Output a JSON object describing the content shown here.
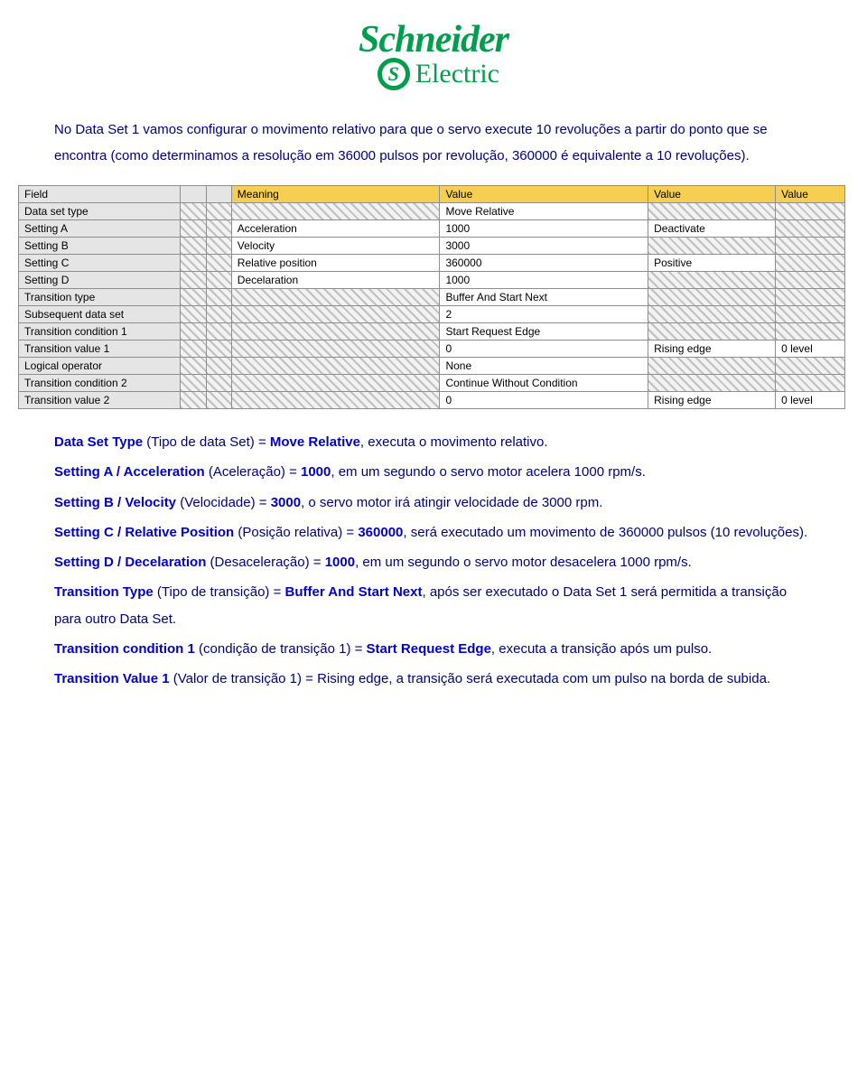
{
  "logo": {
    "main": "Schneider",
    "icon_glyph": "S",
    "sub": "Electric",
    "color": "#009e4d"
  },
  "intro": "No Data Set 1 vamos configurar o movimento relativo para que o servo execute 10 revoluções a partir do ponto que se encontra (como determinamos a resolução em 36000 pulsos por revolução, 360000 é equivalente a 10 revoluções).",
  "table": {
    "headers": [
      "Field",
      "",
      "",
      "Meaning",
      "Value",
      "Value",
      "Value"
    ],
    "rows": [
      {
        "field": "Data set type",
        "meaning": "",
        "v1": "Move Relative",
        "v2": "",
        "v3": "",
        "v1_hatch": false,
        "v2_hatch": true,
        "v3_hatch": true
      },
      {
        "field": "Setting A",
        "meaning": "Acceleration",
        "v1": "1000",
        "v2": "Deactivate",
        "v3": "",
        "v1_hatch": false,
        "v2_hatch": false,
        "v3_hatch": true
      },
      {
        "field": "Setting B",
        "meaning": "Velocity",
        "v1": "3000",
        "v2": "",
        "v3": "",
        "v1_hatch": false,
        "v2_hatch": true,
        "v3_hatch": true
      },
      {
        "field": "Setting C",
        "meaning": "Relative position",
        "v1": "360000",
        "v2": "Positive",
        "v3": "",
        "v1_hatch": false,
        "v2_hatch": false,
        "v3_hatch": true
      },
      {
        "field": "Setting D",
        "meaning": "Decelaration",
        "v1": "1000",
        "v2": "",
        "v3": "",
        "v1_hatch": false,
        "v2_hatch": true,
        "v3_hatch": true
      },
      {
        "field": "Transition type",
        "meaning": "",
        "v1": "Buffer And Start Next",
        "v2": "",
        "v3": "",
        "v1_hatch": false,
        "v2_hatch": true,
        "v3_hatch": true
      },
      {
        "field": "Subsequent data set",
        "meaning": "",
        "v1": "2",
        "v2": "",
        "v3": "",
        "v1_hatch": false,
        "v2_hatch": true,
        "v3_hatch": true
      },
      {
        "field": "Transition condition 1",
        "meaning": "",
        "v1": "Start Request Edge",
        "v2": "",
        "v3": "",
        "v1_hatch": false,
        "v2_hatch": true,
        "v3_hatch": true
      },
      {
        "field": "Transition value 1",
        "meaning": "",
        "v1": "0",
        "v2": "Rising edge",
        "v3": "0 level",
        "v1_hatch": false,
        "v2_hatch": false,
        "v3_hatch": false
      },
      {
        "field": "Logical operator",
        "meaning": "",
        "v1": "None",
        "v2": "",
        "v3": "",
        "v1_hatch": false,
        "v2_hatch": true,
        "v3_hatch": true
      },
      {
        "field": "Transition condition 2",
        "meaning": "",
        "v1": "Continue Without Condition",
        "v2": "",
        "v3": "",
        "v1_hatch": false,
        "v2_hatch": true,
        "v3_hatch": true
      },
      {
        "field": "Transition value 2",
        "meaning": "",
        "v1": "0",
        "v2": "Rising edge",
        "v3": "0 level",
        "v1_hatch": false,
        "v2_hatch": false,
        "v3_hatch": false
      }
    ],
    "header_bg": "#f5ce52",
    "label_bg": "#e5e5e5"
  },
  "explain": {
    "l1a": "Data Set Type",
    "l1b": " (Tipo de data Set) = ",
    "l1c": "Move Relative",
    "l1d": ", executa o movimento relativo.",
    "l2a": "Setting A / Acceleration",
    "l2b": " (Aceleração) = ",
    "l2c": "1000",
    "l2d": ", em um segundo o servo motor acelera 1000 rpm/s.",
    "l3a": "Setting B / Velocity",
    "l3b": " (Velocidade) = ",
    "l3c": "3000",
    "l3d": ", o servo motor irá atingir velocidade de 3000 rpm.",
    "l4a": "Setting C / Relative Position",
    "l4b": " (Posição relativa) = ",
    "l4c": "360000",
    "l4d": ", será executado um movimento de 360000 pulsos (10 revoluções).",
    "l5a": "Setting D / Decelaration",
    "l5b": " (Desaceleração) = ",
    "l5c": "1000",
    "l5d": ", em um segundo o servo motor desacelera 1000 rpm/s.",
    "l6a": "Transition Type",
    "l6b": " (Tipo de transição) = ",
    "l6c": "Buffer And Start Next",
    "l6d": ", após ser executado o Data Set 1 será permitida a transição para outro Data Set.",
    "l7a": "Transition condition 1",
    "l7b": " (condição de transição 1) = ",
    "l7c": "Start Request Edge",
    "l7d": ", executa a transição após um pulso.",
    "l8a": "Transition Value 1",
    "l8b": " (Valor de transição 1) = ",
    "l8c": "Rising edge",
    "l8d": ", a transição será executada com um pulso na borda de subida."
  }
}
